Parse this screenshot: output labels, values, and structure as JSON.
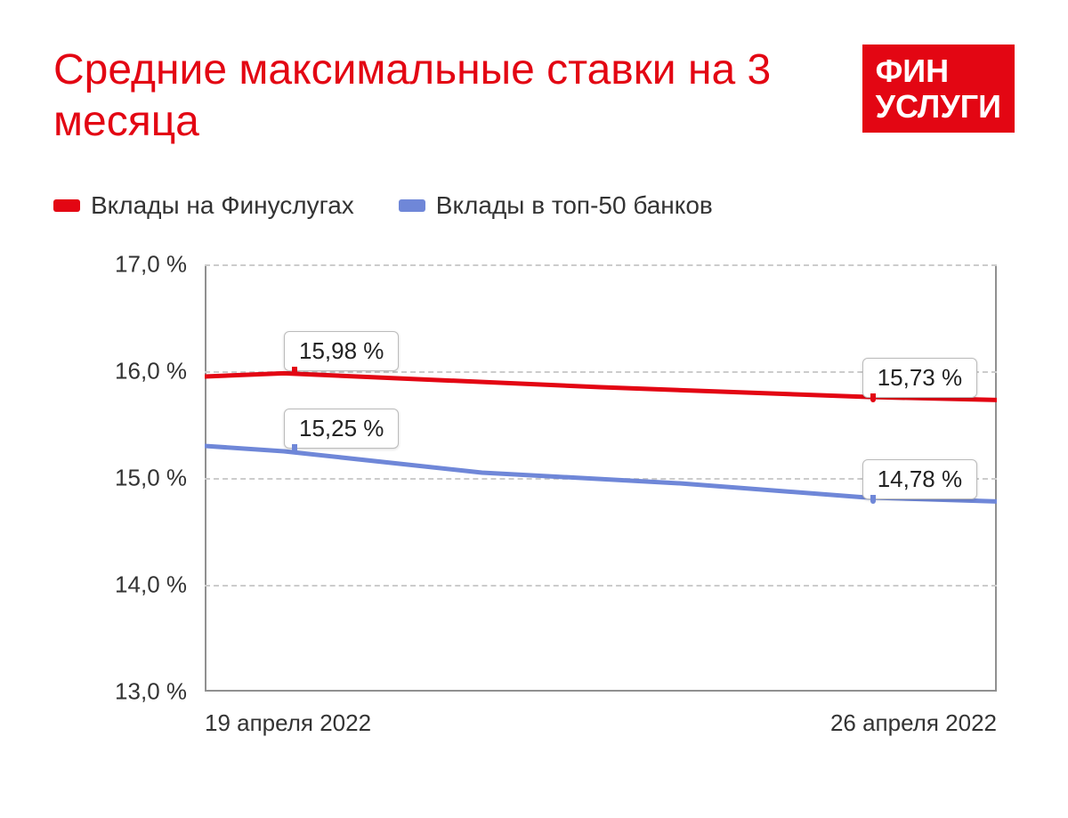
{
  "title": "Средние максимальные ставки на 3 месяца",
  "logo": {
    "line1": "ФИН",
    "line2": "УСЛУГИ"
  },
  "legend": [
    {
      "label": "Вклады на Финуслугах",
      "color": "#e30613"
    },
    {
      "label": "Вклады в топ-50 банков",
      "color": "#6f87d8"
    }
  ],
  "chart": {
    "type": "line",
    "ylim": [
      13.0,
      17.0
    ],
    "yticks": [
      13.0,
      14.0,
      15.0,
      16.0,
      17.0
    ],
    "ytick_labels": [
      "13,0 %",
      "14,0 %",
      "15,0 %",
      "16,0 %",
      "17,0 %"
    ],
    "xlabels": [
      "19 апреля 2022",
      "26 апреля 2022"
    ],
    "background_color": "#ffffff",
    "grid_color": "#cccccc",
    "axis_color": "#909090",
    "line_width": 5,
    "series": [
      {
        "name": "finuslugi",
        "color": "#e30613",
        "points": [
          {
            "x": 0.0,
            "y": 15.95
          },
          {
            "x": 0.1,
            "y": 15.98
          },
          {
            "x": 0.5,
            "y": 15.85
          },
          {
            "x": 0.83,
            "y": 15.76
          },
          {
            "x": 1.0,
            "y": 15.73
          }
        ],
        "labels": [
          {
            "x": 0.1,
            "y": 15.98,
            "text": "15,98 %"
          },
          {
            "x": 0.83,
            "y": 15.73,
            "text": "15,73 %"
          }
        ]
      },
      {
        "name": "top50",
        "color": "#6f87d8",
        "points": [
          {
            "x": 0.0,
            "y": 15.3
          },
          {
            "x": 0.1,
            "y": 15.25
          },
          {
            "x": 0.35,
            "y": 15.05
          },
          {
            "x": 0.6,
            "y": 14.95
          },
          {
            "x": 0.83,
            "y": 14.82
          },
          {
            "x": 1.0,
            "y": 14.78
          }
        ],
        "labels": [
          {
            "x": 0.1,
            "y": 15.25,
            "text": "15,25 %"
          },
          {
            "x": 0.83,
            "y": 14.78,
            "text": "14,78 %"
          }
        ]
      }
    ],
    "label_fontsize": 26,
    "title_color": "#e30613",
    "title_fontsize": 48
  }
}
